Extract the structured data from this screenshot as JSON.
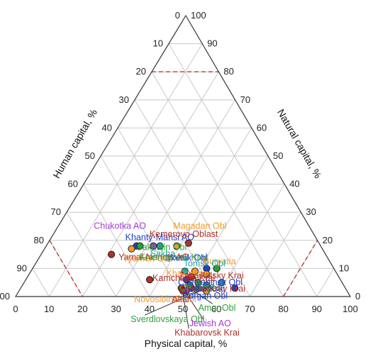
{
  "chart_data": {
    "type": "scatter",
    "subtype": "ternary",
    "axes": {
      "left": {
        "label": "Human capital, %",
        "ticks": [
          "0",
          "10",
          "20",
          "30",
          "40",
          "50",
          "60",
          "70",
          "80",
          "90",
          "100"
        ]
      },
      "right": {
        "label": "Natural capital, %",
        "ticks": [
          "100",
          "90",
          "80",
          "70",
          "60",
          "50",
          "40",
          "30",
          "20",
          "10",
          "0"
        ]
      },
      "bottom": {
        "label": "Physical capital, %",
        "ticks": [
          "0",
          "10",
          "20",
          "30",
          "40",
          "50",
          "60",
          "70",
          "80",
          "90",
          "100"
        ]
      }
    },
    "reference_lines": [
      {
        "component": "human",
        "value": 80
      },
      {
        "component": "physical",
        "value": 80
      },
      {
        "component": "natural",
        "value": 80
      }
    ],
    "series_colors": {
      "red": "#b03028",
      "orange": "#f39a2a",
      "blue": "#1f3fd6",
      "green": "#2e9e3a",
      "teal": "#1aa7a0",
      "purple": "#a23bd1"
    },
    "points": [
      {
        "name": "Chukotka AO",
        "physical": 32,
        "natural": 18,
        "human": 50,
        "color": "purple"
      },
      {
        "name": "Magadan Obl",
        "physical": 39,
        "natural": 18,
        "human": 43,
        "color": "orange"
      },
      {
        "name": "Khanty-Mansi AO",
        "physical": 27,
        "natural": 18,
        "human": 55,
        "color": "blue"
      },
      {
        "name": "Kemerovo Oblast",
        "physical": 42,
        "natural": 19,
        "human": 39,
        "color": "red"
      },
      {
        "name": "Sakha",
        "physical": 34,
        "natural": 18,
        "human": 48,
        "color": "teal"
      },
      {
        "name": "Sakhalin Obl",
        "physical": 28,
        "natural": 18,
        "human": 54,
        "color": "green"
      },
      {
        "name": "Yamal-Nenets AO",
        "physical": 21,
        "natural": 15,
        "human": 64,
        "color": "red"
      },
      {
        "name": "Tyumen Obl",
        "physical": 26,
        "natural": 17,
        "human": 57,
        "color": "orange"
      },
      {
        "name": "Irkutsk Obl",
        "physical": 52,
        "natural": 10,
        "human": 38,
        "color": "blue"
      },
      {
        "name": "Buryatia",
        "physical": 49,
        "natural": 9,
        "human": 42,
        "color": "orange"
      },
      {
        "name": "Tomsk Obl",
        "physical": 46,
        "natural": 9,
        "human": 45,
        "color": "teal"
      },
      {
        "name": "Krasnoyarsk Krai",
        "physical": 55,
        "natural": 10,
        "human": 35,
        "color": "green"
      },
      {
        "name": "Khakassia",
        "physical": 53,
        "natural": 8,
        "human": 39,
        "color": "orange"
      },
      {
        "name": "Zabaikalsky Krai",
        "physical": 49,
        "natural": 7,
        "human": 44,
        "color": "red"
      },
      {
        "name": "Tuva",
        "physical": 59,
        "natural": 5,
        "human": 36,
        "color": "teal"
      },
      {
        "name": "Omsk Obl",
        "physical": 52,
        "natural": 5,
        "human": 43,
        "color": "green"
      },
      {
        "name": "Chelyabinsk Obl",
        "physical": 48,
        "natural": 6,
        "human": 46,
        "color": "blue"
      },
      {
        "name": "Kamchatka Krai",
        "physical": 37,
        "natural": 6,
        "human": 57,
        "color": "red"
      },
      {
        "name": "Altai Krai",
        "physical": 64,
        "natural": 3,
        "human": 33,
        "color": "blue"
      },
      {
        "name": "Novosibirsk Obl",
        "physical": 56,
        "natural": 2,
        "human": 42,
        "color": "orange"
      },
      {
        "name": "Primorsky Krai",
        "physical": 48,
        "natural": 3,
        "human": 49,
        "color": "red"
      },
      {
        "name": "Kurgan Obl",
        "physical": 51,
        "natural": 3,
        "human": 46,
        "color": "blue"
      },
      {
        "name": "Altai",
        "physical": 53,
        "natural": 3,
        "human": 44,
        "color": "red"
      },
      {
        "name": "Sverdlovskaya Obl",
        "physical": 55,
        "natural": 4,
        "human": 41,
        "color": "green"
      },
      {
        "name": "Amur Obl",
        "physical": 50,
        "natural": 4,
        "human": 46,
        "color": "green"
      },
      {
        "name": "Jewish AO",
        "physical": 50,
        "natural": 2,
        "human": 48,
        "color": "purple"
      },
      {
        "name": "Khabarovsk Krai",
        "physical": 49,
        "natural": 2,
        "human": 49,
        "color": "red"
      }
    ]
  }
}
